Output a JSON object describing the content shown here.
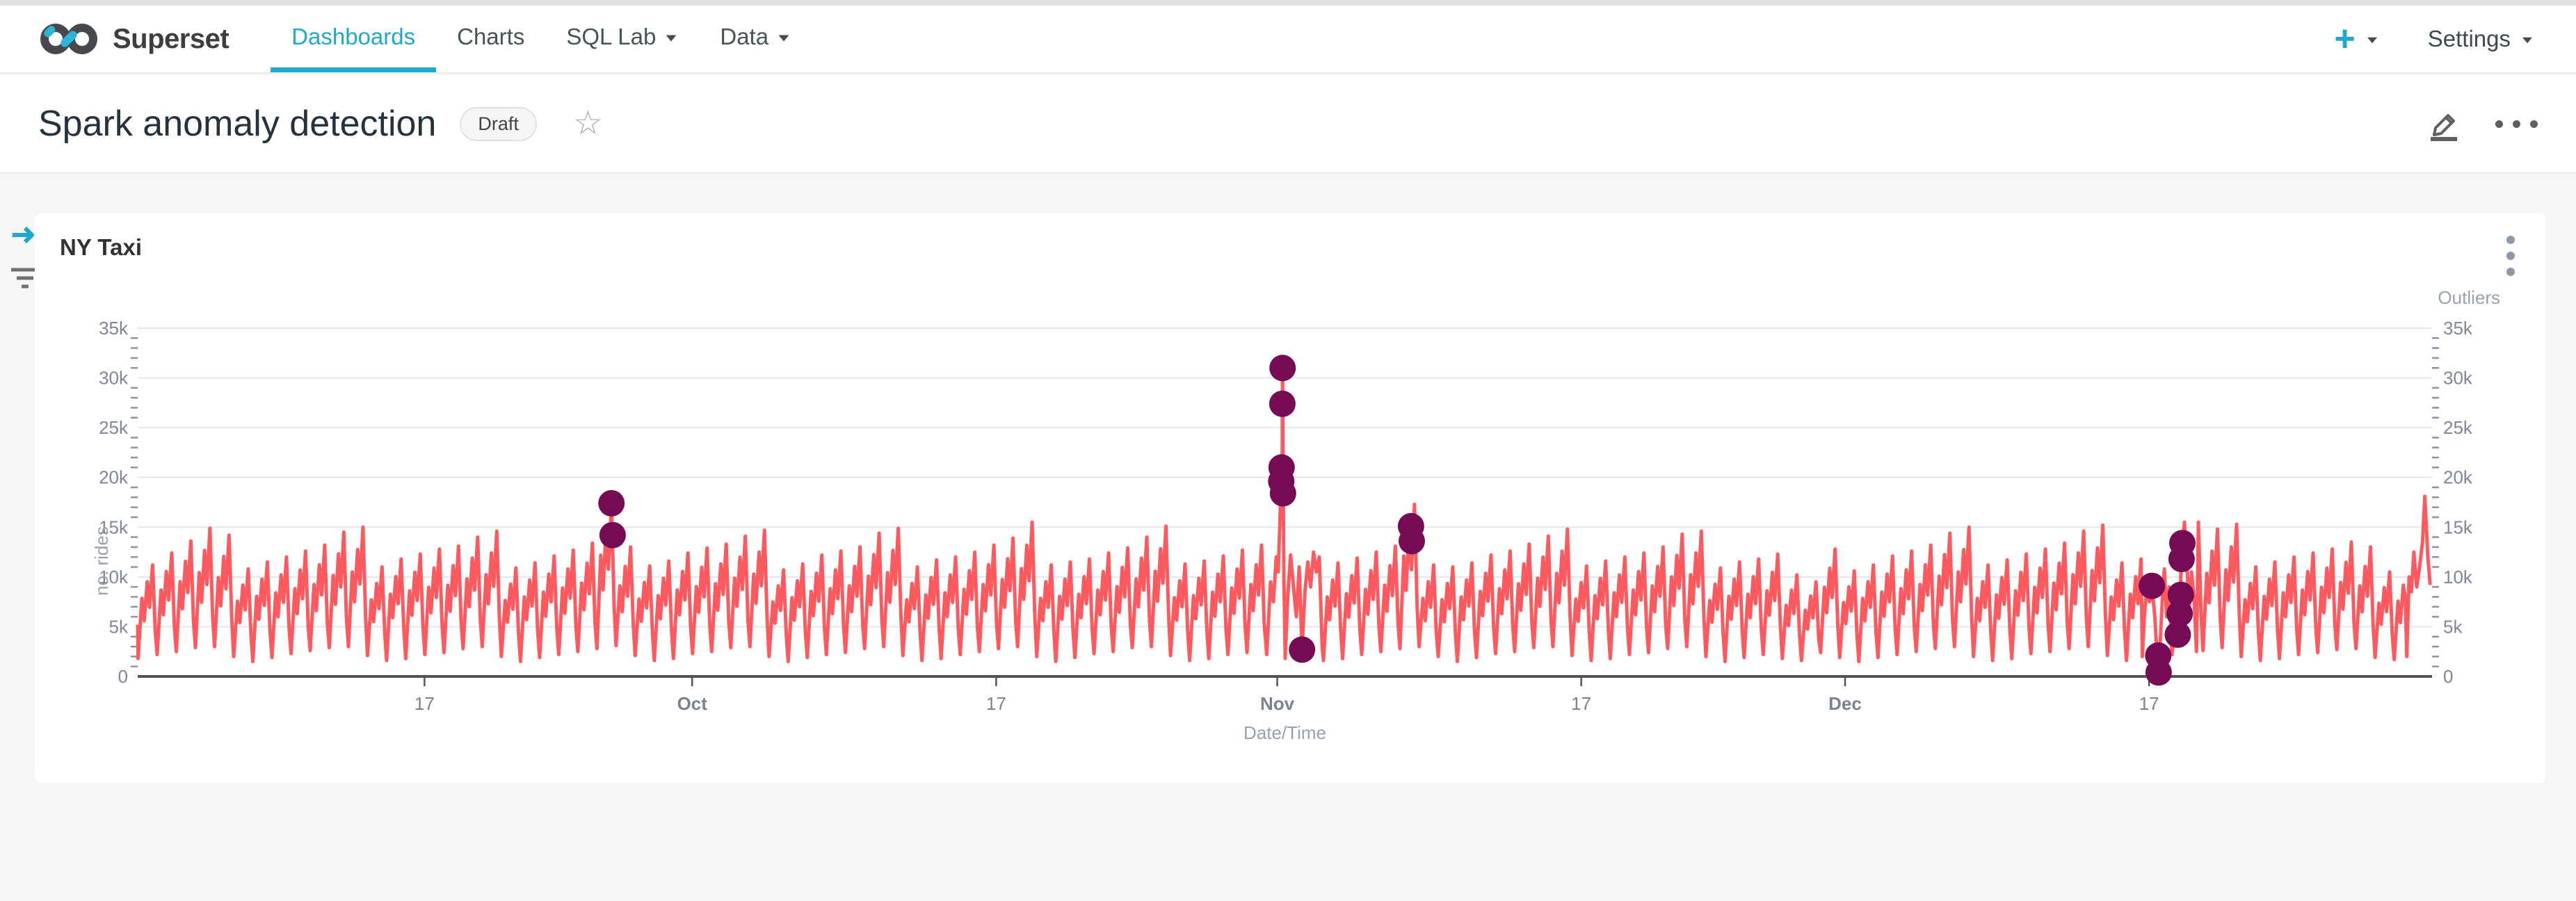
{
  "topbar": {
    "brand": "Superset",
    "nav": [
      {
        "label": "Dashboards",
        "active": true,
        "dropdown": false
      },
      {
        "label": "Charts",
        "active": false,
        "dropdown": false
      },
      {
        "label": "SQL Lab",
        "active": false,
        "dropdown": true
      },
      {
        "label": "Data",
        "active": false,
        "dropdown": true
      }
    ],
    "plus_label": "+",
    "settings_label": "Settings"
  },
  "header": {
    "title": "Spark anomaly detection",
    "status_badge": "Draft",
    "star_icon": "star-outline",
    "actions": [
      "edit-pencil",
      "more-ellipsis"
    ]
  },
  "left_rail": {
    "icons": [
      "expand-filter-bar",
      "filter-funnel"
    ]
  },
  "chart_card": {
    "title": "NY Taxi",
    "menu_icon": "kebab-vertical"
  },
  "colors": {
    "accent_teal": "#1fa8c9",
    "line_red": "#fc5a5f",
    "outlier_dot": "#750a55",
    "gridline": "#e2e6f1",
    "axis_line": "#515559",
    "tick_label": "#7e8798",
    "axis_name": "#98a1b0"
  },
  "chart_data": {
    "type": "line",
    "title": "NY Taxi",
    "xlabel": "Date/Time",
    "ylabel_left": "no. rides",
    "ylabel_right": "Outliers",
    "ylim": [
      0,
      35000
    ],
    "y_tick_step": 5000,
    "y_tick_labels": [
      "0",
      "5k",
      "10k",
      "15k",
      "20k",
      "25k",
      "30k",
      "35k"
    ],
    "grid": true,
    "x_range_days": 120,
    "x_start": "Sep 2",
    "x_end": "Dec 31",
    "x_ticks": [
      {
        "day": 15.0,
        "label": "17",
        "bold": false
      },
      {
        "day": 29.0,
        "label": "Oct",
        "bold": true
      },
      {
        "day": 44.9,
        "label": "17",
        "bold": false
      },
      {
        "day": 59.6,
        "label": "Nov",
        "bold": true
      },
      {
        "day": 75.5,
        "label": "17",
        "bold": false
      },
      {
        "day": 89.3,
        "label": "Dec",
        "bold": true
      },
      {
        "day": 105.2,
        "label": "17",
        "bold": false
      }
    ],
    "units": "thousands of rides",
    "trough_fraction": 0.02,
    "waveform": [
      [
        0.22,
        0.7
      ],
      [
        0.34,
        0.5
      ],
      [
        0.5,
        0.85
      ],
      [
        0.62,
        0.62
      ],
      [
        0.78,
        1.0
      ],
      [
        0.92,
        0.4
      ]
    ],
    "daily_peaks": [
      11.2,
      12.4,
      13.6,
      14.9,
      14.2,
      10.8,
      11.5,
      12.0,
      12.6,
      13.2,
      14.5,
      15.0,
      11.0,
      11.8,
      12.3,
      12.8,
      13.1,
      14.0,
      14.6,
      10.9,
      11.4,
      12.1,
      12.7,
      13.4,
      17.4,
      13.0,
      11.1,
      11.6,
      12.4,
      12.9,
      13.3,
      14.1,
      14.7,
      10.7,
      11.3,
      12.2,
      12.6,
      13.0,
      14.4,
      14.9,
      11.0,
      11.7,
      12.0,
      12.5,
      13.2,
      13.9,
      15.5,
      11.2,
      11.5,
      11.8,
      12.4,
      12.9,
      14.0,
      15.1,
      11.3,
      11.6,
      12.1,
      12.7,
      13.2,
      15.8,
      31.0,
      11.8,
      11.4,
      11.9,
      12.5,
      13.1,
      17.3,
      11.2,
      11.0,
      11.4,
      12.2,
      12.6,
      13.3,
      14.1,
      14.8,
      11.1,
      11.6,
      12.0,
      12.4,
      13.0,
      14.3,
      14.6,
      10.9,
      11.5,
      11.8,
      12.3,
      10.2,
      9.5,
      12.8,
      10.6,
      11.2,
      12.1,
      12.6,
      13.2,
      14.4,
      15.0,
      11.2,
      11.7,
      12.3,
      12.8,
      13.4,
      14.6,
      15.2,
      11.4,
      11.8,
      11.0,
      3.5,
      15.5,
      14.8,
      15.3,
      11.0,
      11.5,
      12.0,
      12.4,
      12.8,
      13.5,
      13.0,
      10.5,
      10.8,
      18.1
    ],
    "daily_troughs": [
      1.8,
      2.2,
      2.5,
      2.9,
      3.0,
      2.0,
      1.5,
      1.9,
      2.3,
      2.6,
      2.9,
      3.0,
      2.1,
      1.6,
      1.8,
      2.2,
      2.4,
      2.8,
      3.0,
      2.0,
      1.5,
      1.9,
      2.2,
      2.5,
      2.8,
      3.1,
      2.1,
      1.6,
      1.8,
      2.3,
      2.5,
      2.9,
      3.0,
      2.0,
      1.5,
      1.9,
      2.2,
      2.4,
      2.8,
      3.0,
      2.1,
      1.6,
      1.8,
      2.2,
      2.5,
      2.8,
      3.0,
      2.0,
      1.5,
      1.9,
      2.3,
      2.5,
      2.9,
      3.0,
      2.1,
      1.6,
      1.8,
      2.2,
      2.4,
      2.8,
      4.0,
      2.7,
      1.6,
      1.8,
      2.2,
      2.5,
      2.8,
      3.0,
      2.0,
      1.5,
      1.9,
      2.3,
      2.5,
      2.9,
      3.0,
      2.1,
      1.6,
      1.8,
      2.2,
      2.4,
      2.8,
      3.0,
      2.0,
      1.5,
      1.9,
      2.2,
      1.8,
      1.6,
      2.4,
      1.9,
      1.5,
      1.9,
      2.2,
      2.5,
      2.8,
      3.0,
      2.0,
      1.6,
      1.8,
      2.3,
      2.5,
      2.8,
      3.0,
      2.1,
      1.6,
      1.7,
      0.4,
      2.0,
      2.6,
      2.9,
      2.0,
      1.6,
      1.8,
      2.2,
      2.4,
      2.7,
      2.8,
      1.9,
      1.7,
      2.5
    ],
    "line_overrides": [
      {
        "from": 59.0,
        "to": 62.0,
        "points": [
          [
            59.05,
            2.2
          ],
          [
            59.25,
            9.5
          ],
          [
            59.4,
            7.5
          ],
          [
            59.55,
            12.0
          ],
          [
            59.65,
            10.5
          ],
          [
            59.75,
            16.0
          ],
          [
            59.8,
            19.6
          ],
          [
            59.82,
            21.0
          ],
          [
            59.84,
            19.0
          ],
          [
            59.86,
            20.5
          ],
          [
            59.87,
            27.4
          ],
          [
            59.88,
            31.0
          ],
          [
            59.91,
            20.0
          ],
          [
            59.95,
            10.0
          ],
          [
            60.02,
            1.8
          ],
          [
            60.15,
            8.0
          ],
          [
            60.3,
            12.2
          ],
          [
            60.45,
            9.0
          ],
          [
            60.6,
            6.0
          ],
          [
            60.75,
            11.0
          ],
          [
            60.9,
            2.7
          ],
          [
            61.05,
            8.5
          ],
          [
            61.2,
            11.5
          ],
          [
            61.35,
            9.0
          ],
          [
            61.5,
            12.5
          ],
          [
            61.65,
            10.5
          ],
          [
            61.8,
            12.0
          ],
          [
            61.95,
            3.0
          ]
        ]
      },
      {
        "from": 104.8,
        "to": 107.7,
        "points": [
          [
            104.85,
            2.0
          ],
          [
            104.95,
            6.0
          ],
          [
            105.1,
            9.5
          ],
          [
            105.22,
            7.5
          ],
          [
            105.35,
            9.1
          ],
          [
            105.5,
            6.0
          ],
          [
            105.62,
            2.0
          ],
          [
            105.7,
            0.4
          ],
          [
            105.8,
            4.0
          ],
          [
            105.9,
            8.0
          ],
          [
            106.0,
            10.8
          ],
          [
            106.12,
            6.0
          ],
          [
            106.25,
            9.0
          ],
          [
            106.4,
            2.2
          ],
          [
            106.55,
            5.0
          ],
          [
            106.68,
            4.2
          ],
          [
            106.78,
            6.3
          ],
          [
            106.84,
            8.2
          ],
          [
            106.88,
            11.8
          ],
          [
            106.94,
            13.4
          ],
          [
            107.05,
            15.5
          ],
          [
            107.18,
            11.0
          ],
          [
            107.3,
            7.0
          ],
          [
            107.42,
            10.5
          ],
          [
            107.55,
            8.0
          ],
          [
            107.68,
            2.5
          ]
        ]
      },
      {
        "from": 118.55,
        "to": 119.95,
        "points": [
          [
            118.6,
            8.0
          ],
          [
            118.68,
            2.0
          ],
          [
            118.8,
            10.0
          ],
          [
            118.92,
            8.5
          ],
          [
            119.05,
            12.5
          ],
          [
            119.2,
            9.0
          ],
          [
            119.35,
            11.0
          ],
          [
            119.5,
            13.5
          ],
          [
            119.62,
            18.1
          ],
          [
            119.78,
            12.0
          ],
          [
            119.9,
            9.2
          ]
        ]
      }
    ],
    "outliers": [
      [
        24.78,
        17.4
      ],
      [
        24.84,
        14.2
      ],
      [
        59.88,
        31.0
      ],
      [
        59.87,
        27.4
      ],
      [
        59.83,
        21.0
      ],
      [
        59.81,
        19.6
      ],
      [
        59.9,
        18.4
      ],
      [
        60.9,
        2.7
      ],
      [
        66.6,
        15.1
      ],
      [
        66.64,
        13.6
      ],
      [
        105.35,
        9.1
      ],
      [
        105.68,
        2.1
      ],
      [
        105.7,
        0.4
      ],
      [
        106.94,
        13.4
      ],
      [
        106.9,
        11.8
      ],
      [
        106.86,
        8.2
      ],
      [
        106.8,
        6.3
      ],
      [
        106.7,
        4.2
      ]
    ]
  }
}
